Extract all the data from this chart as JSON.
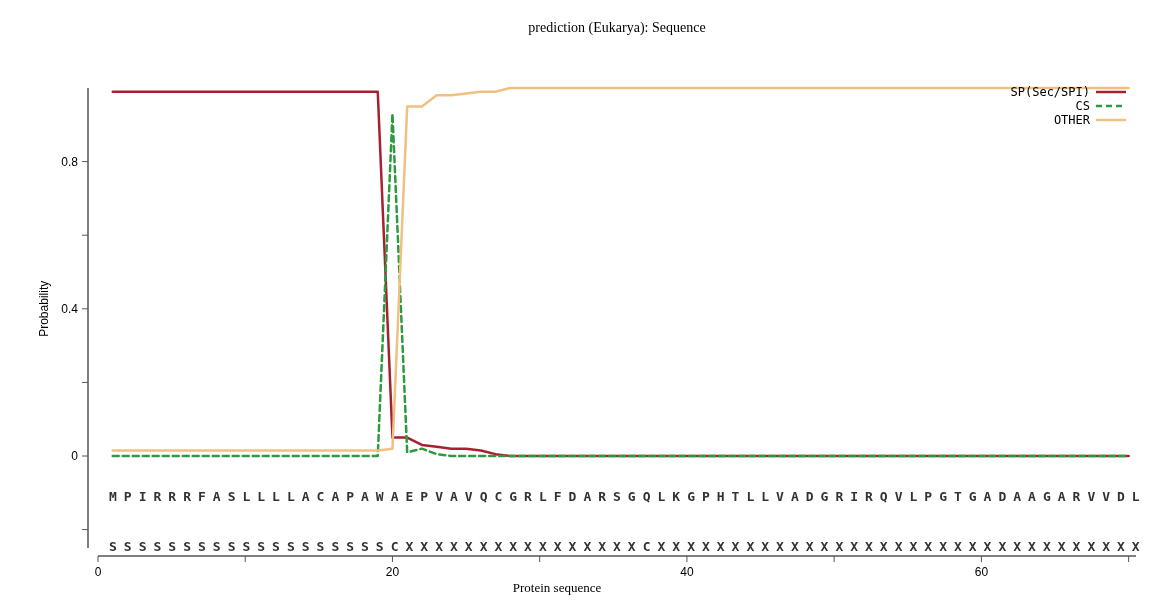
{
  "chart_data": {
    "type": "line",
    "title": "prediction (Eukarya): Sequence",
    "xlabel": "Protein sequence",
    "ylabel": "Probability",
    "x": [
      1,
      2,
      3,
      4,
      5,
      6,
      7,
      8,
      9,
      10,
      11,
      12,
      13,
      14,
      15,
      16,
      17,
      18,
      19,
      20,
      21,
      22,
      23,
      24,
      25,
      26,
      27,
      28,
      29,
      30,
      31,
      32,
      33,
      34,
      35,
      36,
      37,
      38,
      39,
      40,
      41,
      42,
      43,
      44,
      45,
      46,
      47,
      48,
      49,
      50,
      51,
      52,
      53,
      54,
      55,
      56,
      57,
      58,
      59,
      60,
      61,
      62,
      63,
      64,
      65,
      66,
      67,
      68,
      69,
      70
    ],
    "series": [
      {
        "name": "SP(Sec/SPI)",
        "color": "#a82030",
        "line_style": "solid",
        "values": [
          0.99,
          0.99,
          0.99,
          0.99,
          0.99,
          0.99,
          0.99,
          0.99,
          0.99,
          0.99,
          0.99,
          0.99,
          0.99,
          0.99,
          0.99,
          0.99,
          0.99,
          0.99,
          0.99,
          0.05,
          0.05,
          0.03,
          0.025,
          0.02,
          0.02,
          0.015,
          0.005,
          0,
          0,
          0,
          0,
          0,
          0,
          0,
          0,
          0,
          0,
          0,
          0,
          0,
          0,
          0,
          0,
          0,
          0,
          0,
          0,
          0,
          0,
          0,
          0,
          0,
          0,
          0,
          0,
          0,
          0,
          0,
          0,
          0,
          0,
          0,
          0,
          0,
          0,
          0,
          0,
          0,
          0,
          0
        ]
      },
      {
        "name": "CS",
        "color": "#2e9a40",
        "line_style": "dashed",
        "values": [
          0,
          0,
          0,
          0,
          0,
          0,
          0,
          0,
          0,
          0,
          0,
          0,
          0,
          0,
          0,
          0,
          0,
          0,
          0,
          0.93,
          0.01,
          0.02,
          0.005,
          0,
          0,
          0,
          0,
          0,
          0,
          0,
          0,
          0,
          0,
          0,
          0,
          0,
          0,
          0,
          0,
          0,
          0,
          0,
          0,
          0,
          0,
          0,
          0,
          0,
          0,
          0,
          0,
          0,
          0,
          0,
          0,
          0,
          0,
          0,
          0,
          0,
          0,
          0,
          0,
          0,
          0,
          0,
          0,
          0,
          0,
          0
        ]
      },
      {
        "name": "OTHER",
        "color": "#f0c080",
        "line_style": "solid",
        "values": [
          0.015,
          0.015,
          0.015,
          0.015,
          0.015,
          0.015,
          0.015,
          0.015,
          0.015,
          0.015,
          0.015,
          0.015,
          0.015,
          0.015,
          0.015,
          0.015,
          0.015,
          0.015,
          0.015,
          0.02,
          0.95,
          0.95,
          0.98,
          0.98,
          0.985,
          0.99,
          0.99,
          1,
          1,
          1,
          1,
          1,
          1,
          1,
          1,
          1,
          1,
          1,
          1,
          1,
          1,
          1,
          1,
          1,
          1,
          1,
          1,
          1,
          1,
          1,
          1,
          1,
          1,
          1,
          1,
          1,
          1,
          1,
          1,
          1,
          1,
          1,
          1,
          1,
          1,
          1,
          1,
          1,
          1,
          1
        ]
      }
    ],
    "xlim": [
      0,
      70.5
    ],
    "xticks": [
      0,
      {
        "value": 10,
        "label": null
      },
      20,
      {
        "value": 30,
        "label": null
      },
      40,
      {
        "value": 50,
        "label": null
      },
      60,
      {
        "value": 70,
        "label": null
      }
    ],
    "ylim": [
      -0.25,
      1
    ],
    "yticks": [
      {
        "value": -0.2,
        "label": null
      },
      0,
      {
        "value": 0.2,
        "label": null
      },
      0.4,
      {
        "value": 0.6,
        "label": null
      },
      0.8
    ],
    "annotations": [
      "M P I R R R F A S L L L L A C A P A W A E P V A V Q C G R L F D A R S G Q L K G P H T L L V A D G R I R Q V L P G T G A D A A G A R V V D L",
      "S S S S S S S S S S S S S S S S S S S C X X X X X X X X X X X X X X X X C X X X X X X X X X X X X X X X X X X X X X X X X X X X X X X X X X"
    ],
    "grid": false,
    "legend": "top right"
  }
}
